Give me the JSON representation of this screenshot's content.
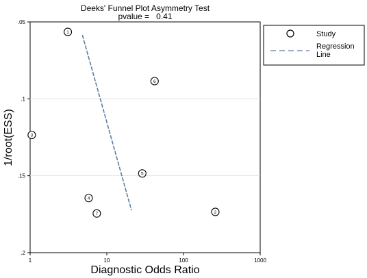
{
  "chart_data": {
    "type": "scatter",
    "title": "Deeks' Funnel Plot Asymmetry Test",
    "subtitle": "pvalue =   0.41",
    "xlabel": "Diagnostic Odds Ratio",
    "ylabel": "1/root(ESS)",
    "x_scale": "log",
    "xlim": [
      1,
      1000
    ],
    "ylim": [
      0.2,
      0.05
    ],
    "y_reversed": true,
    "grid": "horizontal",
    "x_ticks": [
      {
        "value": 1,
        "label": "1"
      },
      {
        "value": 10,
        "label": "10"
      },
      {
        "value": 100,
        "label": "100"
      },
      {
        "value": 1000,
        "label": "1000"
      }
    ],
    "y_ticks": [
      {
        "value": 0.05,
        "label": ".05"
      },
      {
        "value": 0.1,
        "label": ".1"
      },
      {
        "value": 0.15,
        "label": ".15"
      },
      {
        "value": 0.2,
        "label": ".2"
      }
    ],
    "points": [
      {
        "label": "1",
        "x": 3.1,
        "y": 0.0565
      },
      {
        "label": "2",
        "x": 260,
        "y": 0.1735
      },
      {
        "label": "3",
        "x": 1.05,
        "y": 0.1235
      },
      {
        "label": "4",
        "x": 5.8,
        "y": 0.1645
      },
      {
        "label": "5",
        "x": 29,
        "y": 0.1485
      },
      {
        "label": "6",
        "x": 42,
        "y": 0.0885
      },
      {
        "label": "7",
        "x": 7.4,
        "y": 0.1745
      }
    ],
    "regression_line": [
      {
        "x": 4.8,
        "y": 0.0585
      },
      {
        "x": 21,
        "y": 0.1725
      }
    ],
    "legend": {
      "position": "right",
      "items": [
        {
          "label": "Study",
          "marker": "circle"
        },
        {
          "label": "Regression Line",
          "marker": "dashed-line"
        }
      ]
    },
    "colors": {
      "marker": "#000000",
      "regression": "#5b7ea3",
      "grid": "#e2e2e2"
    }
  }
}
